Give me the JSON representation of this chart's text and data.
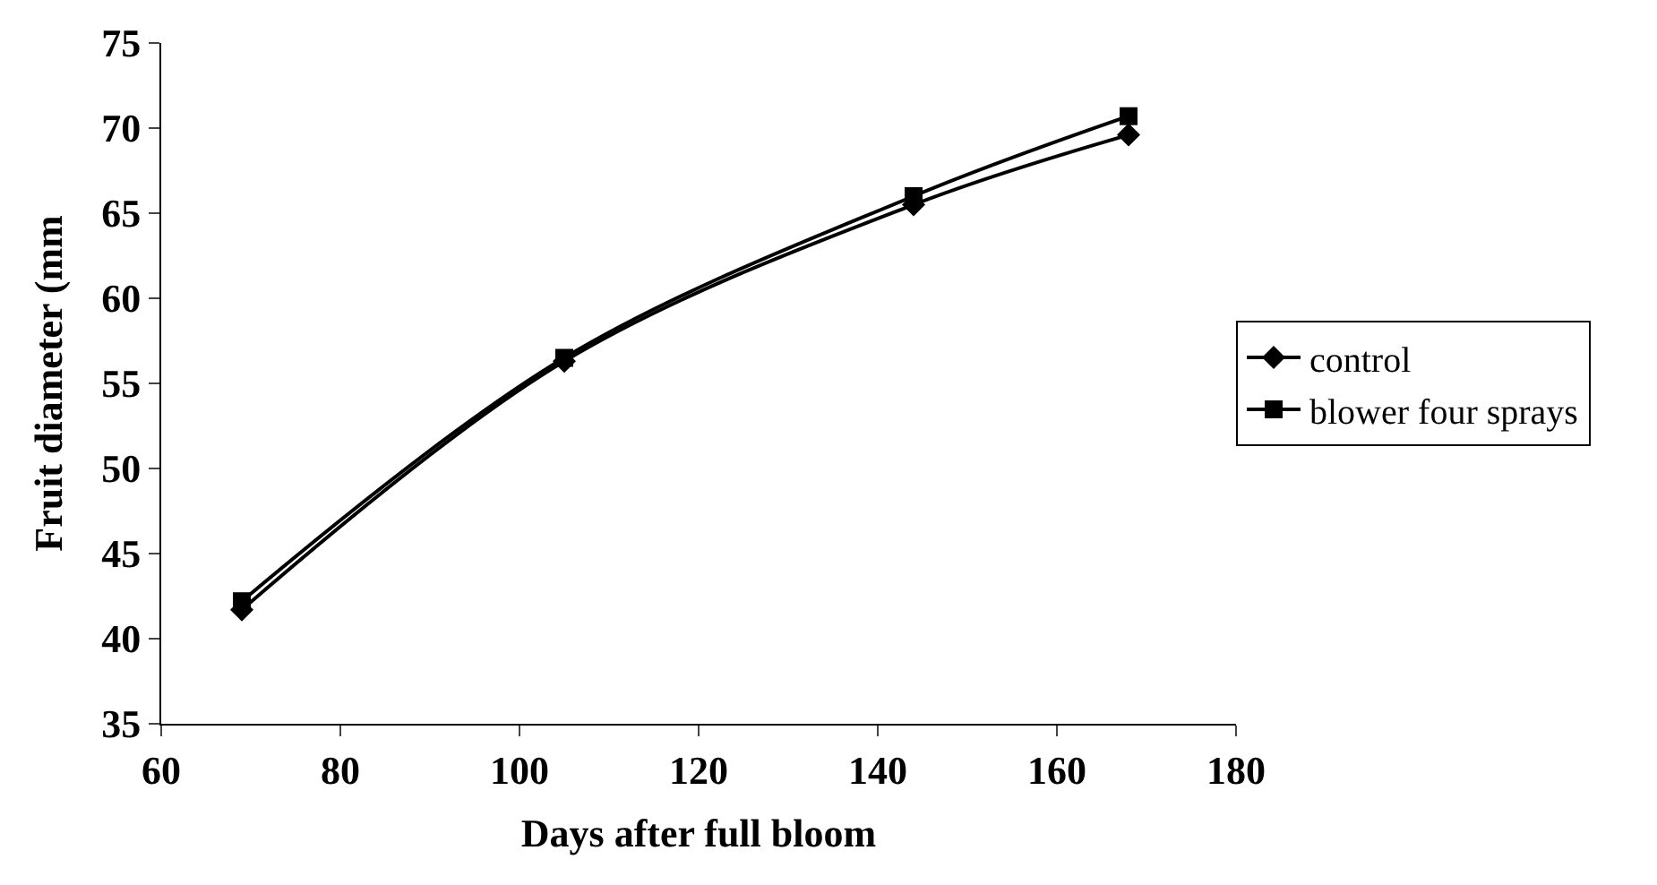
{
  "chart_data": {
    "type": "line",
    "xlabel": "Days after full bloom",
    "ylabel": "Fruit diameter (mm",
    "x": [
      69,
      105,
      144,
      168
    ],
    "series": [
      {
        "name": "control",
        "color": "#000000",
        "values": [
          41.7,
          56.3,
          65.5,
          69.6
        ],
        "marker": "diamond"
      },
      {
        "name": "blower four sprays",
        "color": "#000000",
        "values": [
          42.2,
          56.5,
          66.0,
          70.7
        ],
        "marker": "square"
      }
    ],
    "xlim": [
      60,
      180
    ],
    "xticks": [
      60,
      80,
      100,
      120,
      140,
      160,
      180
    ],
    "ylim": [
      35,
      75
    ],
    "yticks": [
      35,
      40,
      45,
      50,
      55,
      60,
      65,
      70,
      75
    ],
    "legend": "right",
    "line_style": "solid"
  }
}
